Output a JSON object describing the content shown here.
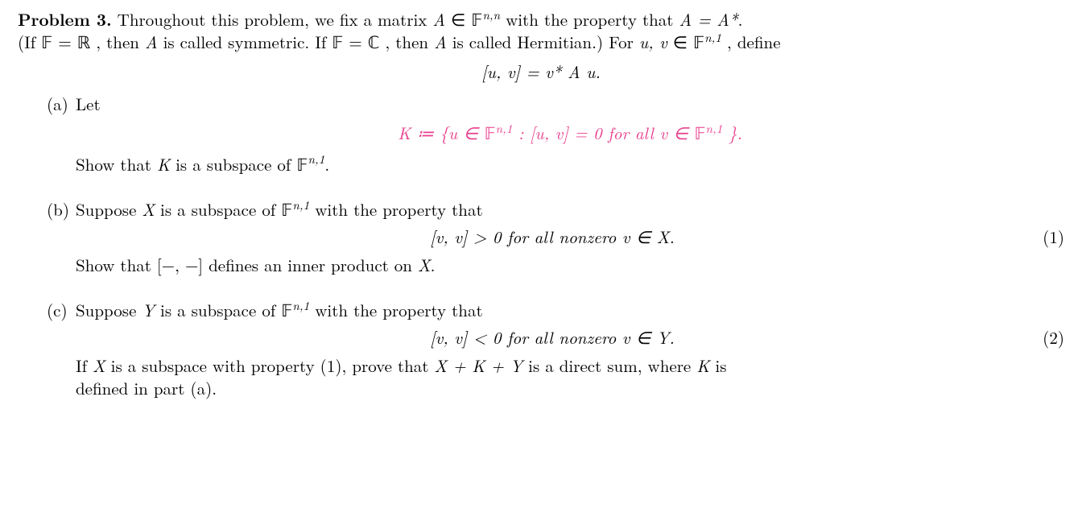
{
  "colors": {
    "text": "#000000",
    "highlight": "#e83e8c",
    "background": "#ffffff"
  },
  "typography": {
    "font_family": "Latin Modern Roman / Computer Modern (serif)",
    "base_fontsize_pt": 16,
    "bold_for_problem_label": true
  },
  "problem": {
    "label": "Problem 3.",
    "intro_l1_a": "Throughout this problem, we fix a matrix ",
    "intro_l1_b": " with the property that ",
    "intro_l2_a": "(If ",
    "intro_l2_b": ", then ",
    "intro_l2_c": " is called symmetric. If ",
    "intro_l2_d": ", then ",
    "intro_l2_e": " is called Hermitian.)  For ",
    "intro_l2_f": ", define",
    "matrixA": "A",
    "matrixA_star": "A*",
    "equals": " = ",
    "Fnn_exp": "n,n",
    "Fn1_exp": "n,1",
    "uv_names": "u, v",
    "period": ".",
    "def_formula": "[u, v]  =  v* A u."
  },
  "parts": {
    "a": {
      "label": "(a)",
      "lead": "Let",
      "K_def_pre": "K",
      "K_def_mid1": "{u ",
      "K_def_mid2": " : [u, v] = 0 for all v ",
      "K_def_end": "}.",
      "conclude_a": "Show that ",
      "conclude_b": " is a subspace of ",
      "K": "K"
    },
    "b": {
      "label": "(b)",
      "line1_a": "Suppose ",
      "line1_b": " is a subspace of ",
      "line1_c": " with the property that",
      "X": "X",
      "cond": "[v, v]  >  0  for all nonzero  v ",
      "cond_tail": " X.",
      "eqno": "(1)",
      "line2_a": "Show that  [",
      "line2_b": ", ",
      "line2_c": "]  defines an inner product on ",
      "line2_d": "."
    },
    "c": {
      "label": "(c)",
      "line1_a": "Suppose ",
      "line1_b": " is a subspace of ",
      "line1_c": " with the property that",
      "Y": "Y",
      "cond": "[v, v]  <  0  for all nonzero  v ",
      "cond_tail": " Y.",
      "eqno": "(2)",
      "line2_a": "If ",
      "line2_b": " is a subspace with property (1), prove that ",
      "line2_c": " is a direct sum, where ",
      "line2_d": " is",
      "line3": "defined in part (a).",
      "X": "X",
      "K": "K",
      "sum": "X + K + Y"
    }
  }
}
